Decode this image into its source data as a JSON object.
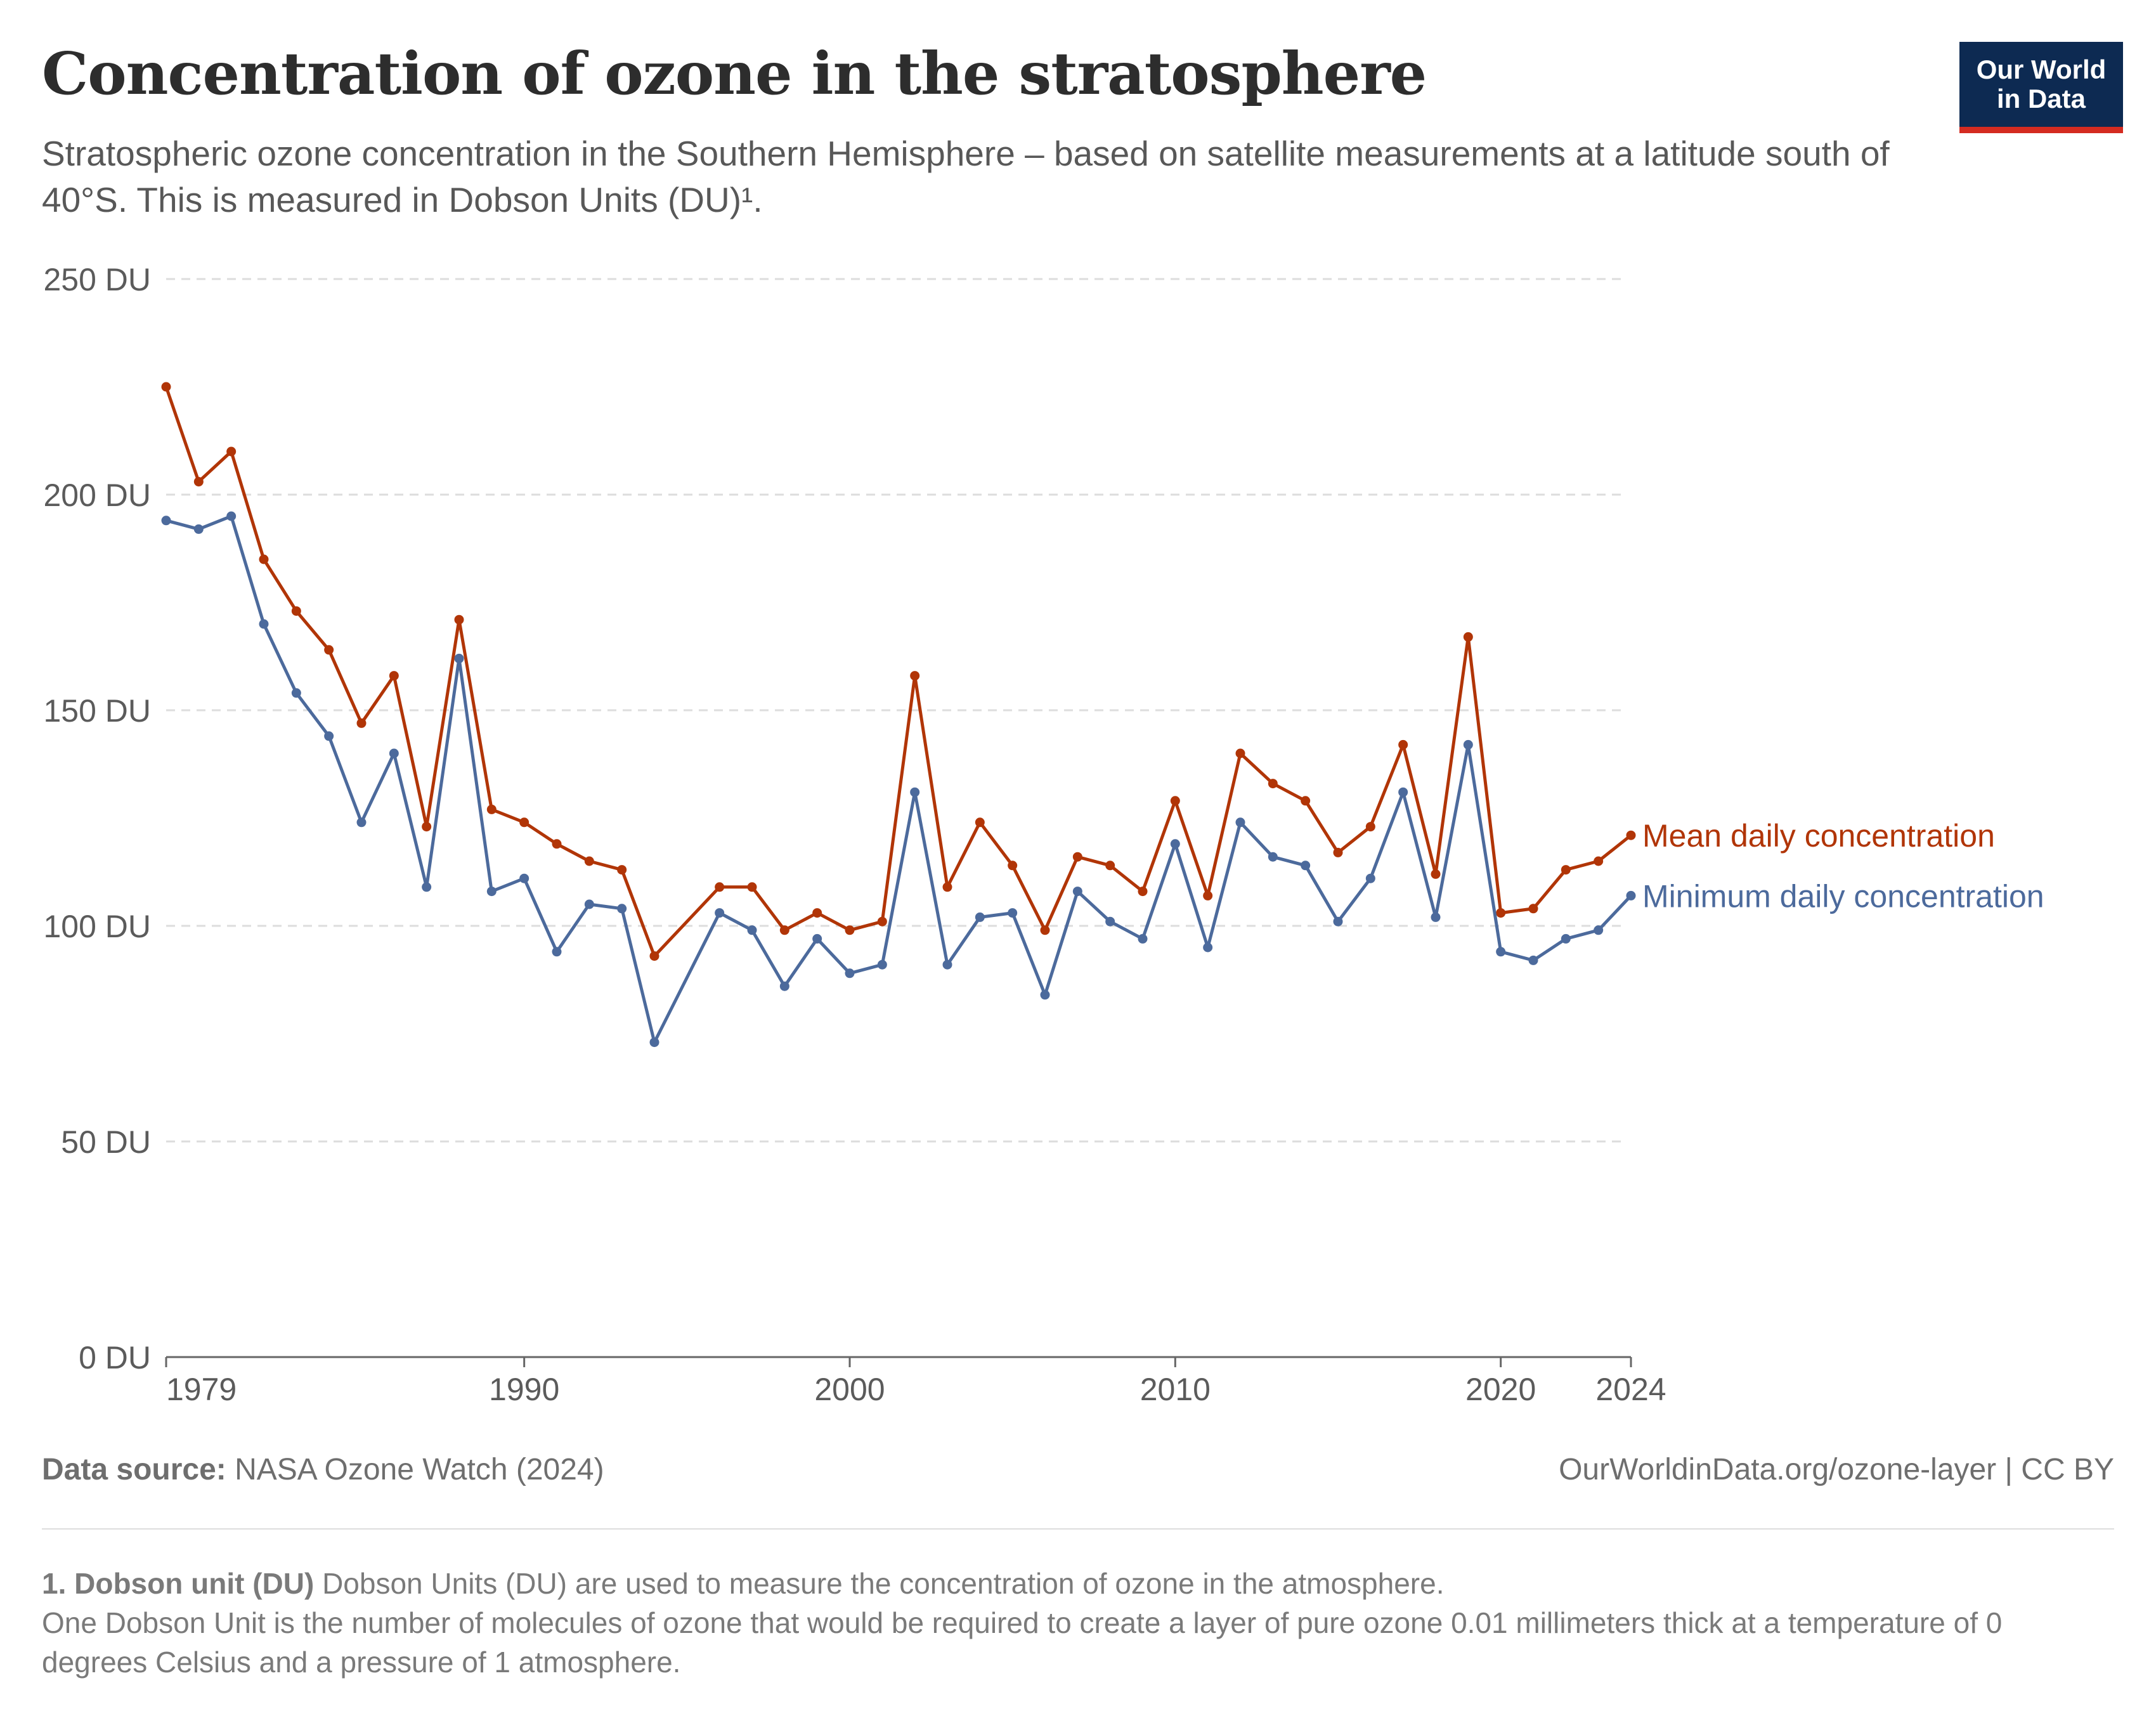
{
  "header": {
    "title": "Concentration of ozone in the stratosphere",
    "subtitle": "Stratospheric ozone concentration in the Southern Hemisphere – based on satellite measurements at a latitude south of 40°S. This is measured in Dobson Units (DU)¹.",
    "logo_line1": "Our World",
    "logo_line2": "in Data"
  },
  "footer": {
    "source_label": "Data source:",
    "source_text": "NASA Ozone Watch (2024)",
    "link": "OurWorldinData.org/ozone-layer | CC BY",
    "footnote_label": "1. Dobson unit (DU)",
    "footnote_line1": "Dobson Units (DU) are used to measure the concentration of ozone in the atmosphere.",
    "footnote_line2": "One Dobson Unit is the number of molecules of ozone that would be required to create a layer of pure ozone 0.01 millimeters thick at a temperature of 0 degrees Celsius and a pressure of 1 atmosphere."
  },
  "colors": {
    "mean": "#b13507",
    "minimum": "#4c6a9c",
    "grid": "#dddddd",
    "axis": "#666666",
    "tick_text": "#5b5b5b"
  },
  "chart_data": {
    "type": "line",
    "x": [
      1979,
      1980,
      1981,
      1982,
      1983,
      1984,
      1985,
      1986,
      1987,
      1988,
      1989,
      1990,
      1991,
      1992,
      1993,
      1994,
      1996,
      1997,
      1998,
      1999,
      2000,
      2001,
      2002,
      2003,
      2004,
      2005,
      2006,
      2007,
      2008,
      2009,
      2010,
      2011,
      2012,
      2013,
      2014,
      2015,
      2016,
      2017,
      2018,
      2019,
      2020,
      2021,
      2022,
      2023,
      2024
    ],
    "series": [
      {
        "name": "Mean daily concentration",
        "color_key": "mean",
        "values": [
          225,
          203,
          210,
          185,
          173,
          164,
          147,
          158,
          123,
          171,
          127,
          124,
          119,
          115,
          113,
          93,
          109,
          109,
          99,
          103,
          99,
          101,
          158,
          109,
          124,
          114,
          99,
          116,
          114,
          108,
          129,
          107,
          140,
          133,
          129,
          117,
          123,
          142,
          112,
          167,
          103,
          104,
          113,
          115,
          121
        ]
      },
      {
        "name": "Minimum daily concentration",
        "color_key": "minimum",
        "values": [
          194,
          192,
          195,
          170,
          154,
          144,
          124,
          140,
          109,
          162,
          108,
          111,
          94,
          105,
          104,
          73,
          103,
          99,
          86,
          97,
          89,
          91,
          131,
          91,
          102,
          103,
          84,
          108,
          101,
          97,
          119,
          95,
          124,
          116,
          114,
          101,
          111,
          131,
          102,
          142,
          94,
          92,
          97,
          99,
          107
        ]
      }
    ],
    "ylim": [
      0,
      250
    ],
    "yticks": [
      0,
      50,
      100,
      150,
      200,
      250
    ],
    "ytick_labels": [
      "0 DU",
      "50 DU",
      "100 DU",
      "150 DU",
      "200 DU",
      "250 DU"
    ],
    "xlim": [
      1979,
      2024
    ],
    "xticks": [
      1979,
      1990,
      2000,
      2010,
      2020,
      2024
    ],
    "xtick_labels": [
      "1979",
      "1990",
      "2000",
      "2010",
      "2020",
      "2024"
    ],
    "grid": "horizontal dashed",
    "legend": "inline labels at line ends, right"
  }
}
